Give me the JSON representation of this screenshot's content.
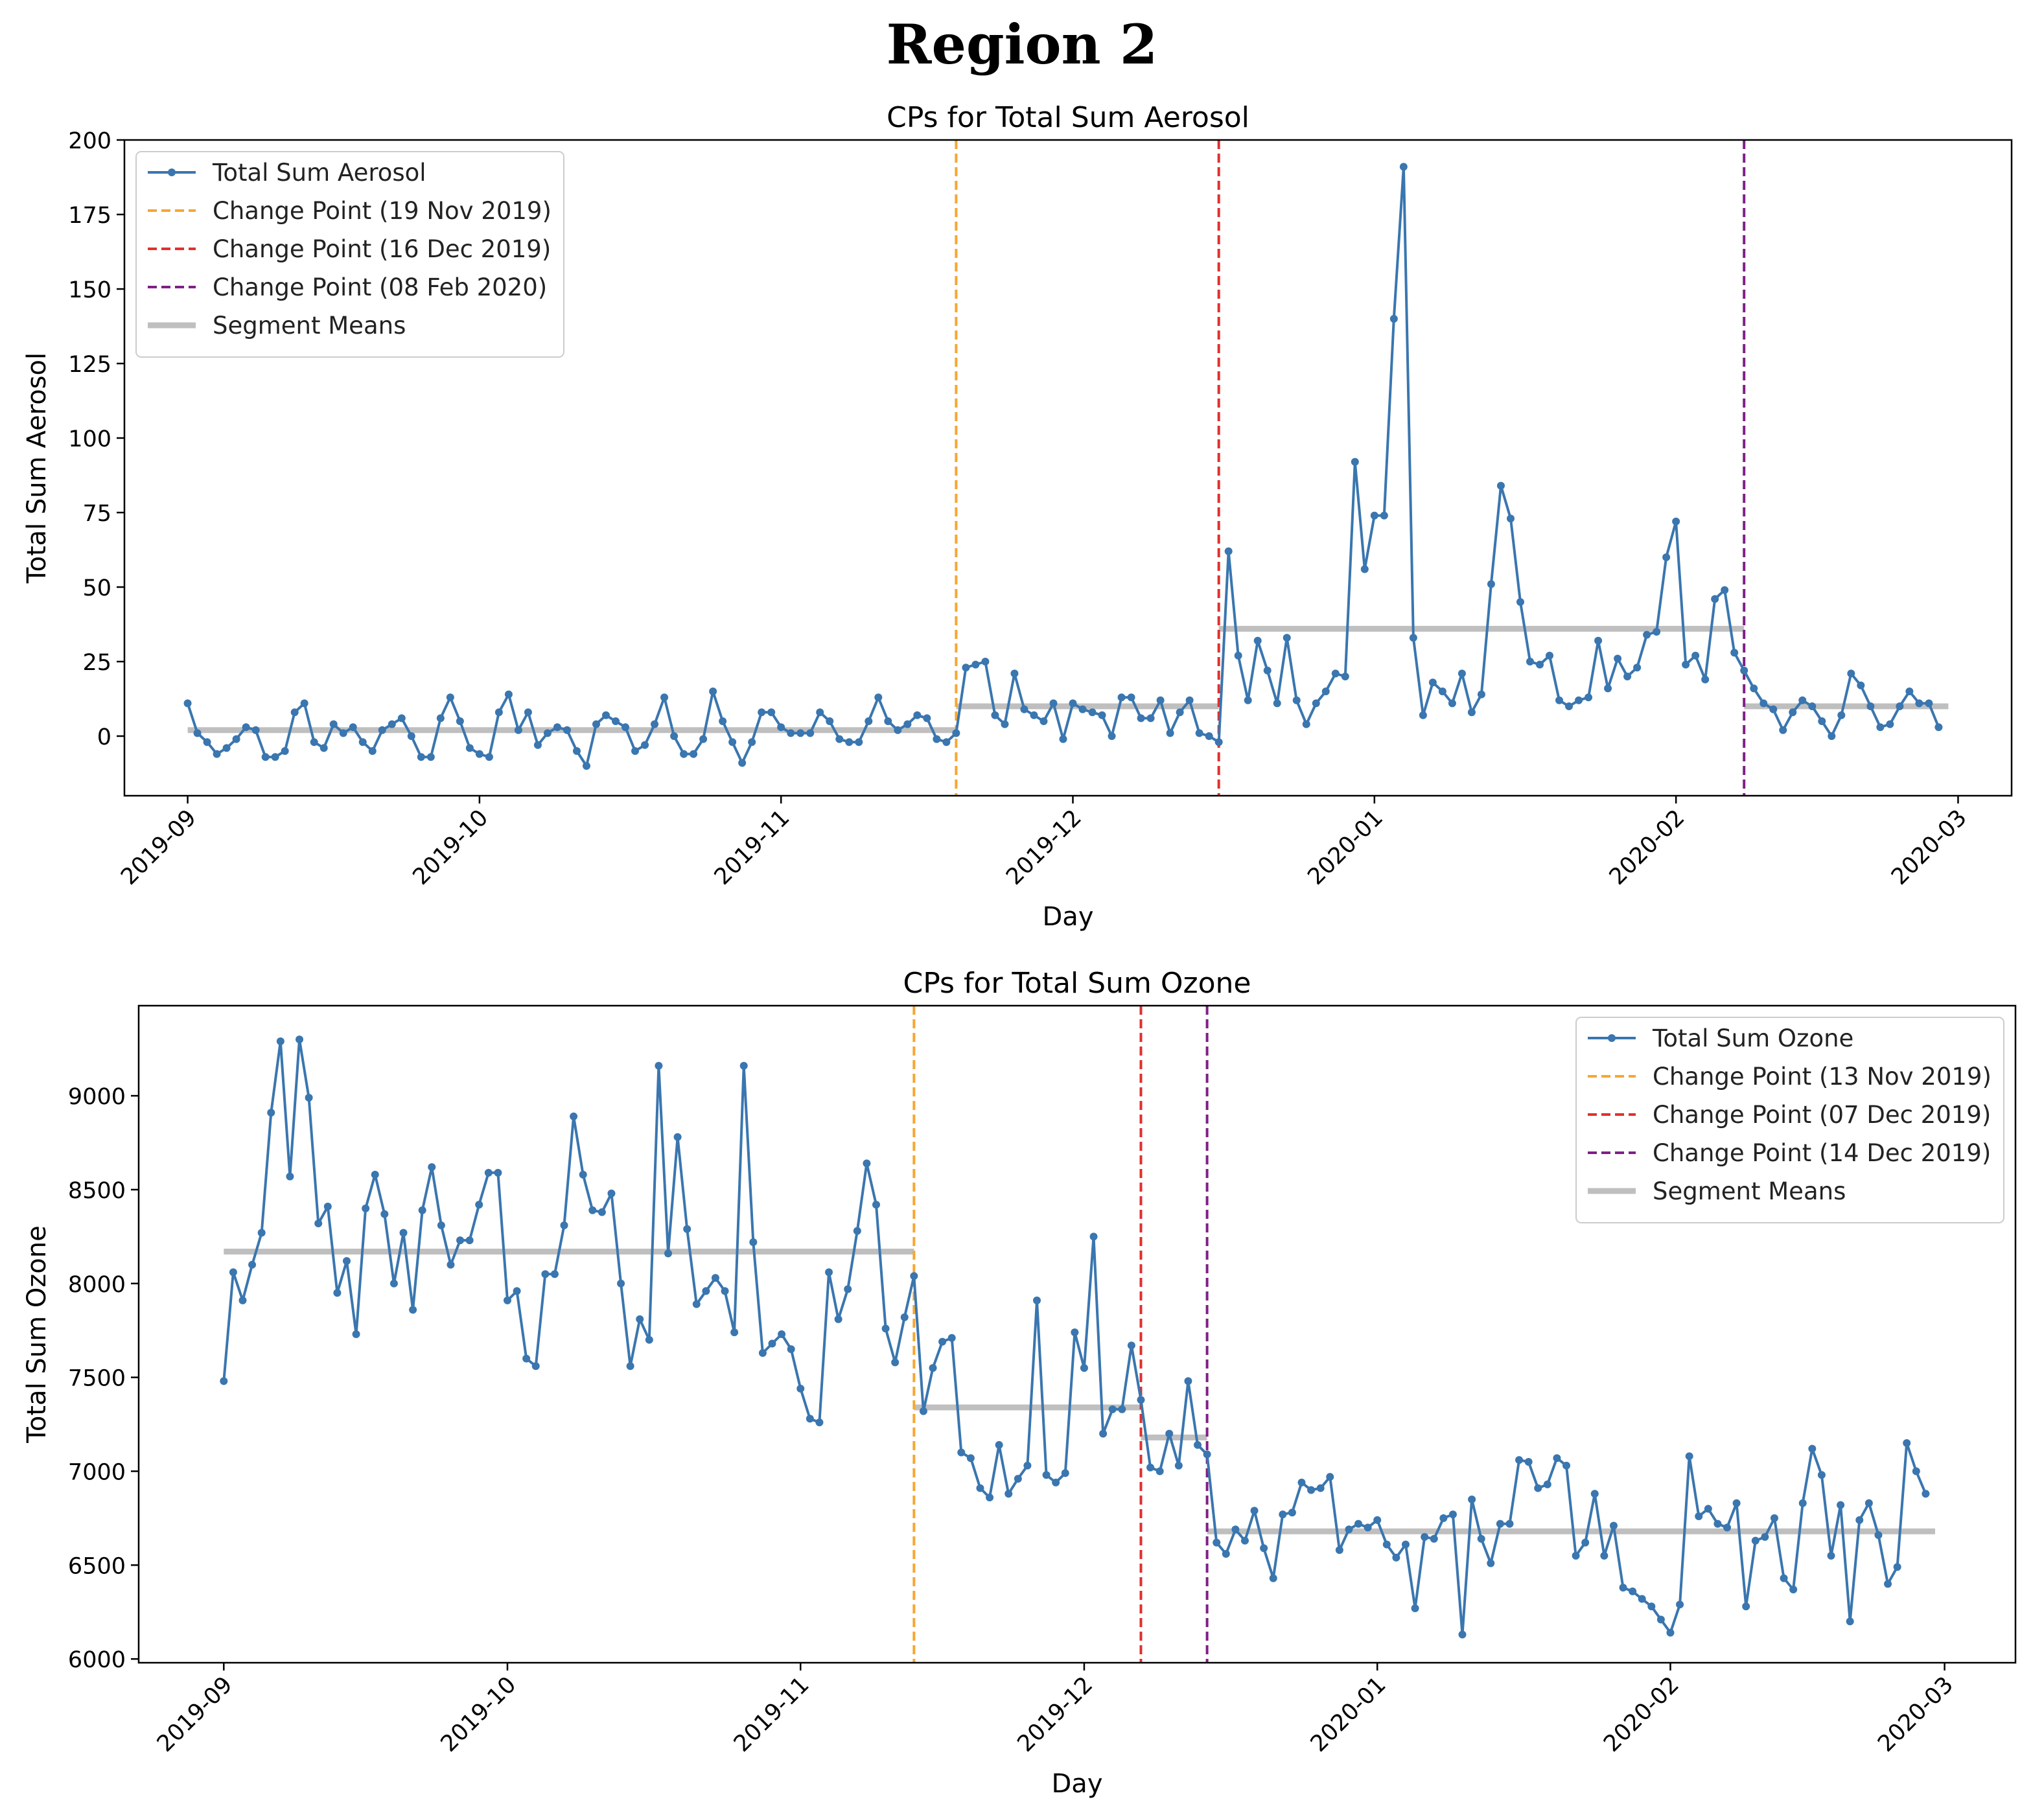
{
  "figure_title": "Region 2",
  "colors": {
    "series": "#3a76af",
    "segment_mean": "#bfbfbf",
    "cp1": "#f5a733",
    "cp2": "#e0302c",
    "cp3": "#7f1f86",
    "axis": "#000000",
    "legend_border": "#cccccc"
  },
  "chart_data": [
    {
      "id": "aerosol",
      "type": "line",
      "title": "CPs for Total Sum Aerosol",
      "xlabel": "Day",
      "ylabel": "Total Sum Aerosol",
      "start_date": "2019-09-01",
      "xlim_days": [
        -6.5,
        187.5
      ],
      "ylim": [
        -20,
        200
      ],
      "yticks": [
        0,
        25,
        50,
        75,
        100,
        125,
        150,
        175,
        200
      ],
      "xticks": [
        {
          "label": "2019-09",
          "day": 0
        },
        {
          "label": "2019-10",
          "day": 30
        },
        {
          "label": "2019-11",
          "day": 61
        },
        {
          "label": "2019-12",
          "day": 91
        },
        {
          "label": "2020-01",
          "day": 122
        },
        {
          "label": "2020-02",
          "day": 153
        },
        {
          "label": "2020-03",
          "day": 182
        }
      ],
      "legend_position": "top-left",
      "series": [
        {
          "name": "Total Sum Aerosol",
          "values": [
            11,
            1,
            -2,
            -6,
            -4,
            -1,
            3,
            2,
            -7,
            -7,
            -5,
            8,
            11,
            -2,
            -4,
            4,
            1,
            3,
            -2,
            -5,
            2,
            4,
            6,
            0,
            -7,
            -7,
            6,
            13,
            5,
            -4,
            -6,
            -7,
            8,
            14,
            2,
            8,
            -3,
            1,
            3,
            2,
            -5,
            -10,
            4,
            7,
            5,
            3,
            -5,
            -3,
            4,
            13,
            0,
            -6,
            -6,
            -1,
            15,
            5,
            -2,
            -9,
            -2,
            8,
            8,
            3,
            1,
            1,
            1,
            8,
            5,
            -1,
            -2,
            -2,
            5,
            13,
            5,
            2,
            4,
            7,
            6,
            -1,
            -2,
            1,
            23,
            24,
            25,
            7,
            4,
            21,
            9,
            7,
            5,
            11,
            -1,
            11,
            9,
            8,
            7,
            0,
            13,
            13,
            6,
            6,
            12,
            1,
            8,
            12,
            1,
            0,
            -2,
            62,
            27,
            12,
            32,
            22,
            11,
            33,
            12,
            4,
            11,
            15,
            21,
            20,
            92,
            56,
            74,
            74,
            140,
            191,
            33,
            7,
            18,
            15,
            11,
            21,
            8,
            14,
            51,
            84,
            73,
            45,
            25,
            24,
            27,
            12,
            10,
            12,
            13,
            32,
            16,
            26,
            20,
            23,
            34,
            35,
            60,
            72,
            24,
            27,
            19,
            46,
            49,
            28,
            22,
            16,
            11,
            9,
            2,
            8,
            12,
            10,
            5,
            0,
            7,
            21,
            17,
            10,
            3,
            4,
            10,
            15,
            11,
            11,
            3
          ]
        },
        {
          "name": "Change Point (19 Nov 2019)",
          "day": 79,
          "color_key": "cp1"
        },
        {
          "name": "Change Point (16 Dec 2019)",
          "day": 106,
          "color_key": "cp2"
        },
        {
          "name": "Change Point (08 Feb 2020)",
          "day": 160,
          "color_key": "cp3"
        },
        {
          "name": "Segment Means",
          "segments": [
            {
              "from": 0,
              "to": 79,
              "value": 2
            },
            {
              "from": 79,
              "to": 106,
              "value": 10
            },
            {
              "from": 106,
              "to": 160,
              "value": 36
            },
            {
              "from": 160,
              "to": 181,
              "value": 10
            }
          ]
        }
      ]
    },
    {
      "id": "ozone",
      "type": "line",
      "title": "CPs for Total Sum Ozone",
      "xlabel": "Day",
      "ylabel": "Total Sum Ozone",
      "start_date": "2019-09-01",
      "xlim_days": [
        -9,
        189.5
      ],
      "ylim": [
        5980,
        9480
      ],
      "yticks": [
        6000,
        6500,
        7000,
        7500,
        8000,
        8500,
        9000
      ],
      "xticks": [
        {
          "label": "2019-09",
          "day": 0
        },
        {
          "label": "2019-10",
          "day": 30
        },
        {
          "label": "2019-11",
          "day": 61
        },
        {
          "label": "2019-12",
          "day": 91
        },
        {
          "label": "2020-01",
          "day": 122
        },
        {
          "label": "2020-02",
          "day": 153
        },
        {
          "label": "2020-03",
          "day": 182
        }
      ],
      "legend_position": "top-right",
      "series": [
        {
          "name": "Total Sum Ozone",
          "values": [
            7480,
            8060,
            7910,
            8100,
            8270,
            8910,
            9290,
            8570,
            9300,
            8990,
            8320,
            8410,
            7950,
            8120,
            7730,
            8400,
            8580,
            8370,
            8000,
            8270,
            7860,
            8390,
            8620,
            8310,
            8100,
            8230,
            8230,
            8420,
            8590,
            8590,
            7910,
            7960,
            7600,
            7560,
            8050,
            8050,
            8310,
            8890,
            8580,
            8390,
            8380,
            8480,
            8000,
            7560,
            7810,
            7700,
            9160,
            8160,
            8780,
            8290,
            7890,
            7960,
            8030,
            7960,
            7740,
            9160,
            8220,
            7630,
            7680,
            7730,
            7650,
            7440,
            7280,
            7260,
            8060,
            7810,
            7970,
            8280,
            8640,
            8420,
            7760,
            7580,
            7820,
            8040,
            7320,
            7550,
            7690,
            7710,
            7100,
            7070,
            6910,
            6860,
            7140,
            6880,
            6960,
            7030,
            7910,
            6980,
            6940,
            6990,
            7740,
            7550,
            8250,
            7200,
            7330,
            7330,
            7670,
            7380,
            7020,
            7000,
            7200,
            7030,
            7480,
            7140,
            7090,
            6620,
            6560,
            6690,
            6630,
            6790,
            6590,
            6430,
            6770,
            6780,
            6940,
            6900,
            6910,
            6970,
            6580,
            6690,
            6720,
            6700,
            6740,
            6610,
            6540,
            6610,
            6270,
            6650,
            6640,
            6750,
            6770,
            6130,
            6850,
            6640,
            6510,
            6720,
            6720,
            7060,
            7050,
            6910,
            6930,
            7070,
            7030,
            6550,
            6620,
            6880,
            6550,
            6710,
            6380,
            6360,
            6320,
            6280,
            6210,
            6140,
            6290,
            7080,
            6760,
            6800,
            6720,
            6700,
            6830,
            6280,
            6630,
            6650,
            6750,
            6430,
            6370,
            6830,
            7120,
            6980,
            6550,
            6820,
            6200,
            6740,
            6830,
            6660,
            6400,
            6490,
            7150,
            7000,
            6880
          ]
        },
        {
          "name": "Change Point (13 Nov 2019)",
          "day": 73,
          "color_key": "cp1"
        },
        {
          "name": "Change Point (07 Dec 2019)",
          "day": 97,
          "color_key": "cp2"
        },
        {
          "name": "Change Point (14 Dec 2019)",
          "day": 104,
          "color_key": "cp3"
        },
        {
          "name": "Segment Means",
          "segments": [
            {
              "from": 0,
              "to": 73,
              "value": 8170
            },
            {
              "from": 73,
              "to": 97,
              "value": 7340
            },
            {
              "from": 97,
              "to": 104,
              "value": 7180
            },
            {
              "from": 104,
              "to": 181,
              "value": 6680
            }
          ]
        }
      ]
    }
  ]
}
